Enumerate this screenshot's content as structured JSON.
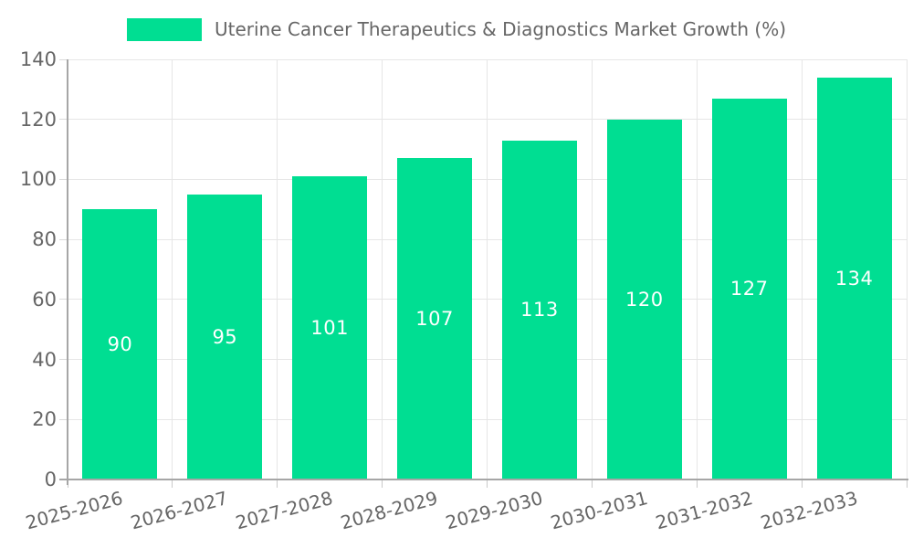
{
  "chart_data": {
    "type": "bar",
    "title": "Uterine Cancer Therapeutics & Diagnostics Market Growth (%)",
    "categories": [
      "2025-2026",
      "2026-2027",
      "2027-2028",
      "2028-2029",
      "2029-2030",
      "2030-2031",
      "2031-2032",
      "2032-2033"
    ],
    "values": [
      90,
      95,
      101,
      107,
      113,
      120,
      127,
      134
    ],
    "xlabel": "",
    "ylabel": "",
    "ylim": [
      0,
      140
    ],
    "yticks": [
      0,
      20,
      40,
      60,
      80,
      100,
      120,
      140
    ],
    "legend_position": "top-center",
    "grid": true,
    "value_labels": "inside-center",
    "colors": {
      "bar": "#00DE92",
      "value_label": "#FFFFFF",
      "gridline": "#E6E6E6",
      "axis_line": "#A6A6A6",
      "axis_text": "#666666",
      "legend_text": "#666666",
      "background": "#FFFFFF"
    }
  }
}
